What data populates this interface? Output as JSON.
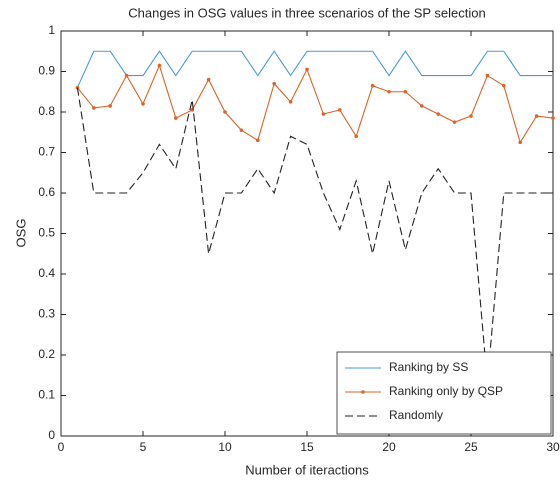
{
  "chart_data": {
    "type": "line",
    "title": "Changes in OSG values in three scenarios of the SP selection",
    "xlabel": "Number of iteractions",
    "ylabel": "OSG",
    "x": [
      1,
      2,
      3,
      4,
      5,
      6,
      7,
      8,
      9,
      10,
      11,
      12,
      13,
      14,
      15,
      16,
      17,
      18,
      19,
      20,
      21,
      22,
      23,
      24,
      25,
      26,
      27,
      28,
      29,
      30
    ],
    "series": [
      {
        "name": "Ranking by SS",
        "color": "#4a9bd1",
        "dash": false,
        "marker": false,
        "values": [
          0.86,
          0.95,
          0.95,
          0.89,
          0.89,
          0.95,
          0.89,
          0.95,
          0.95,
          0.95,
          0.95,
          0.89,
          0.95,
          0.89,
          0.95,
          0.95,
          0.95,
          0.95,
          0.95,
          0.89,
          0.95,
          0.89,
          0.89,
          0.89,
          0.89,
          0.95,
          0.95,
          0.89,
          0.89,
          0.89
        ]
      },
      {
        "name": "Ranking only by QSP",
        "color": "#d9652b",
        "dash": false,
        "marker": true,
        "values": [
          0.86,
          0.81,
          0.815,
          0.89,
          0.82,
          0.915,
          0.785,
          0.805,
          0.88,
          0.8,
          0.755,
          0.73,
          0.87,
          0.825,
          0.905,
          0.795,
          0.805,
          0.74,
          0.865,
          0.85,
          0.85,
          0.815,
          0.795,
          0.775,
          0.79,
          0.89,
          0.865,
          0.725,
          0.79,
          0.785
        ]
      },
      {
        "name": "Randomly",
        "color": "#222222",
        "dash": true,
        "marker": false,
        "values": [
          0.86,
          0.6,
          0.6,
          0.6,
          0.65,
          0.72,
          0.66,
          0.83,
          0.45,
          0.6,
          0.6,
          0.66,
          0.6,
          0.74,
          0.72,
          0.6,
          0.51,
          0.63,
          0.45,
          0.63,
          0.46,
          0.6,
          0.66,
          0.6,
          0.6,
          0.13,
          0.6,
          0.6,
          0.6,
          0.6
        ]
      }
    ],
    "xlim": [
      0,
      30
    ],
    "xticks": [
      0,
      5,
      10,
      15,
      20,
      25,
      30
    ],
    "ylim": [
      0,
      1
    ],
    "yticks": [
      0,
      0.1,
      0.2,
      0.3,
      0.4,
      0.5,
      0.6,
      0.7,
      0.8,
      0.9,
      1
    ],
    "legend": "lower right"
  }
}
